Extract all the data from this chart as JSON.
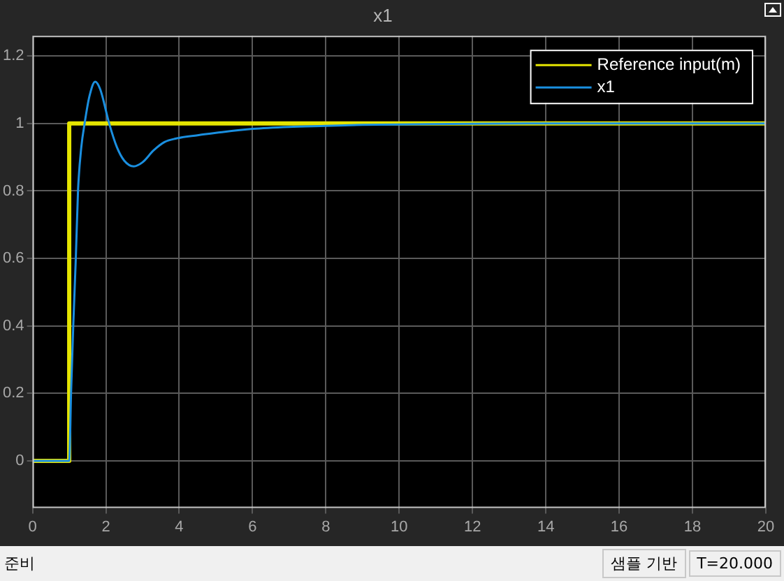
{
  "chart_data": {
    "type": "line",
    "title": "x1",
    "xlim": [
      0,
      20
    ],
    "xticks": [
      0,
      2,
      4,
      6,
      8,
      10,
      12,
      14,
      16,
      18,
      20
    ],
    "ylim": [
      -0.14,
      1.26
    ],
    "yticks": [
      0,
      0.2,
      0.4,
      0.6,
      0.8,
      1,
      1.2
    ],
    "grid": true,
    "legend": "top right",
    "marker": "none",
    "line_style": "solid",
    "series": [
      {
        "name": "Reference input(m)",
        "color": "#e5e500",
        "x": [
          0,
          1,
          1,
          20
        ],
        "values": [
          0,
          0,
          1,
          1
        ]
      },
      {
        "name": "x1",
        "color": "#1a8fe0",
        "x": [
          0,
          1,
          1.05,
          1.11,
          1.18,
          1.24,
          1.33,
          1.42,
          1.55,
          1.71,
          1.85,
          2.09,
          2.3,
          2.5,
          2.76,
          3.0,
          3.3,
          3.6,
          3.9,
          4.5,
          5,
          6,
          7,
          8,
          9,
          10,
          12,
          14,
          16,
          18,
          20
        ],
        "values": [
          0,
          0,
          0.2,
          0.4,
          0.6,
          0.8,
          0.93,
          1.0,
          1.08,
          1.124,
          1.1,
          1.0,
          0.93,
          0.89,
          0.873,
          0.885,
          0.92,
          0.945,
          0.955,
          0.965,
          0.972,
          0.984,
          0.99,
          0.993,
          0.996,
          0.997,
          0.999,
          1,
          1,
          1,
          1
        ]
      }
    ],
    "annotations": [
      "준비",
      "샘플 기반",
      "T=20.000"
    ]
  }
}
